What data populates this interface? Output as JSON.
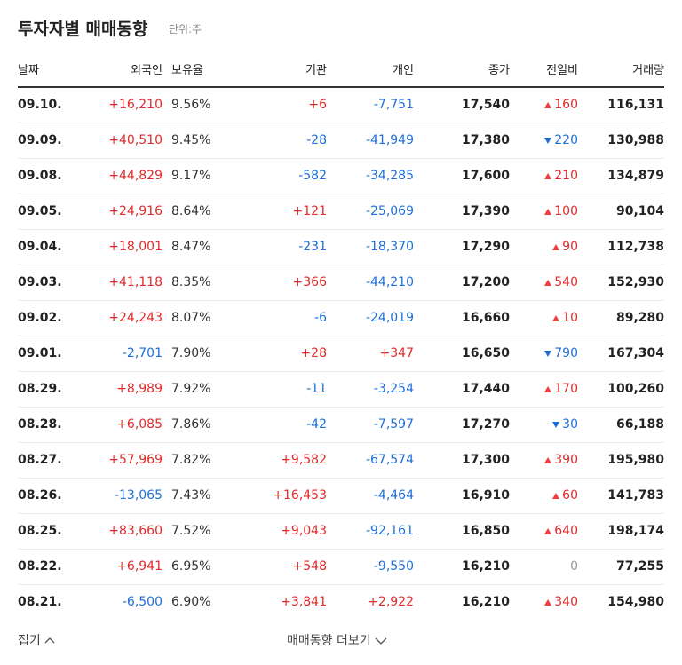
{
  "header": {
    "title": "투자자별 매매동향",
    "unit": "단위:주"
  },
  "table": {
    "columns": [
      "날짜",
      "외국인",
      "보유율",
      "기관",
      "개인",
      "종가",
      "전일비",
      "거래량"
    ],
    "rows": [
      [
        "09.10.",
        "+16,210",
        "9.56%",
        "+6",
        "-7,751",
        "17,540",
        "160",
        "116,131"
      ],
      [
        "09.09.",
        "+40,510",
        "9.45%",
        "-28",
        "-41,949",
        "17,380",
        "220",
        "130,988"
      ],
      [
        "09.08.",
        "+44,829",
        "9.17%",
        "-582",
        "-34,285",
        "17,600",
        "210",
        "134,879"
      ],
      [
        "09.05.",
        "+24,916",
        "8.64%",
        "+121",
        "-25,069",
        "17,390",
        "100",
        "90,104"
      ],
      [
        "09.04.",
        "+18,001",
        "8.47%",
        "-231",
        "-18,370",
        "17,290",
        "90",
        "112,738"
      ],
      [
        "09.03.",
        "+41,118",
        "8.35%",
        "+366",
        "-44,210",
        "17,200",
        "540",
        "152,930"
      ],
      [
        "09.02.",
        "+24,243",
        "8.07%",
        "-6",
        "-24,019",
        "16,660",
        "10",
        "89,280"
      ],
      [
        "09.01.",
        "-2,701",
        "7.90%",
        "+28",
        "+347",
        "16,650",
        "790",
        "167,304"
      ],
      [
        "08.29.",
        "+8,989",
        "7.92%",
        "-11",
        "-3,254",
        "17,440",
        "170",
        "100,260"
      ],
      [
        "08.28.",
        "+6,085",
        "7.86%",
        "-42",
        "-7,597",
        "17,270",
        "30",
        "66,188"
      ],
      [
        "08.27.",
        "+57,969",
        "7.82%",
        "+9,582",
        "-67,574",
        "17,300",
        "390",
        "195,980"
      ],
      [
        "08.26.",
        "-13,065",
        "7.43%",
        "+16,453",
        "-4,464",
        "16,910",
        "60",
        "141,783"
      ],
      [
        "08.25.",
        "+83,660",
        "7.52%",
        "+9,043",
        "-92,161",
        "16,850",
        "640",
        "198,174"
      ],
      [
        "08.22.",
        "+6,941",
        "6.95%",
        "+548",
        "-9,550",
        "16,210",
        "0",
        "77,255"
      ],
      [
        "08.21.",
        "-6,500",
        "6.90%",
        "+3,841",
        "+2,922",
        "16,210",
        "340",
        "154,980"
      ]
    ],
    "change_direction": [
      "up",
      "down",
      "up",
      "up",
      "up",
      "up",
      "up",
      "down",
      "up",
      "down",
      "up",
      "up",
      "up",
      "flat",
      "up"
    ]
  },
  "footer": {
    "collapse": "접기",
    "more": "매매동향 더보기"
  }
}
